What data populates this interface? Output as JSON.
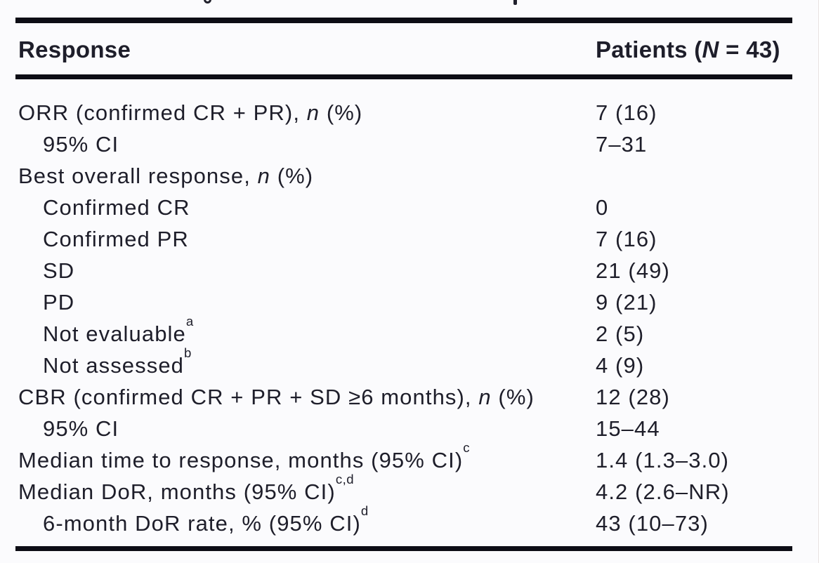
{
  "table": {
    "header": {
      "response": "Response",
      "patients_pre": "Patients (",
      "patients_italic": "N",
      "patients_post": " = 43)"
    },
    "rows": [
      {
        "pre": "ORR (confirmed CR + PR), ",
        "it": "n",
        "post": " (%)",
        "sup": "",
        "value": "7 (16)",
        "indent": false
      },
      {
        "pre": "95% CI",
        "it": "",
        "post": "",
        "sup": "",
        "value": "7–31",
        "indent": true
      },
      {
        "pre": "Best overall response, ",
        "it": "n",
        "post": " (%)",
        "sup": "",
        "value": "",
        "indent": false
      },
      {
        "pre": "Confirmed CR",
        "it": "",
        "post": "",
        "sup": "",
        "value": "0",
        "indent": true
      },
      {
        "pre": "Confirmed PR",
        "it": "",
        "post": "",
        "sup": "",
        "value": "7 (16)",
        "indent": true
      },
      {
        "pre": "SD",
        "it": "",
        "post": "",
        "sup": "",
        "value": "21 (49)",
        "indent": true
      },
      {
        "pre": "PD",
        "it": "",
        "post": "",
        "sup": "",
        "value": "9 (21)",
        "indent": true
      },
      {
        "pre": "Not evaluable",
        "it": "",
        "post": "",
        "sup": "a",
        "value": "2 (5)",
        "indent": true
      },
      {
        "pre": "Not assessed",
        "it": "",
        "post": "",
        "sup": "b",
        "value": "4 (9)",
        "indent": true
      },
      {
        "pre": "CBR (confirmed CR + PR + SD ≥6 months), ",
        "it": "n",
        "post": " (%)",
        "sup": "",
        "value": "12 (28)",
        "indent": false
      },
      {
        "pre": "95% CI",
        "it": "",
        "post": "",
        "sup": "",
        "value": "15–44",
        "indent": true
      },
      {
        "pre": "Median time to response, months (95% CI)",
        "it": "",
        "post": "",
        "sup": "c",
        "value": "1.4 (1.3–3.0)",
        "indent": false
      },
      {
        "pre": "Median DoR, months (95% CI)",
        "it": "",
        "post": "",
        "sup": "c,d",
        "value": "4.2 (2.6–NR)",
        "indent": false
      },
      {
        "pre": "6-month DoR rate, % (95% CI)",
        "it": "",
        "post": "",
        "sup": "d",
        "value": "43 (10–73)",
        "indent": true
      }
    ]
  }
}
